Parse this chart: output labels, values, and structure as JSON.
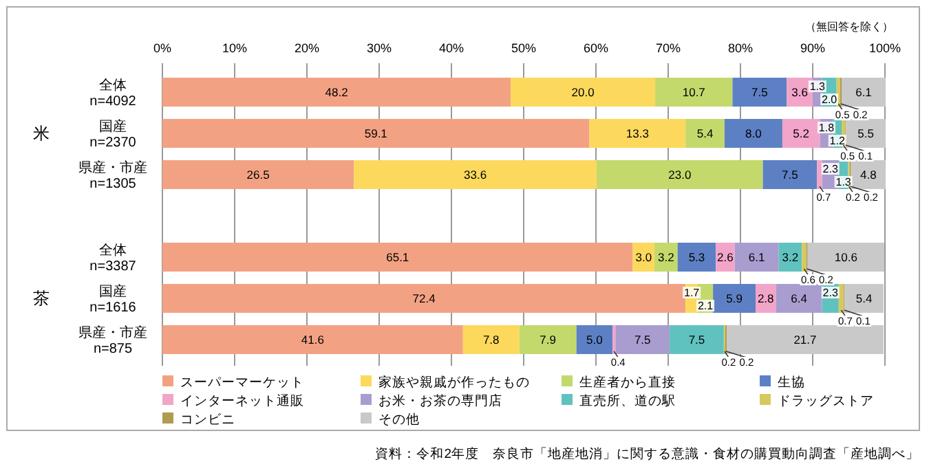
{
  "chart_data": {
    "type": "bar",
    "orientation": "horizontal",
    "stacked": true,
    "grid": "x",
    "legend": "bottom",
    "categories": [
      "全体\nn=4092",
      "国産\nn=2370",
      "県産・市産\nn=1305",
      null,
      "全体\nn=3387",
      "国産\nn=1616",
      "県産・市産\nn=875"
    ],
    "xlim": [
      0,
      100
    ],
    "xticks": [
      {
        "value": 0,
        "label": "0%"
      },
      {
        "value": 10,
        "label": "10%"
      },
      {
        "value": 20,
        "label": "20%"
      },
      {
        "value": 30,
        "label": "30%"
      },
      {
        "value": 40,
        "label": "40%"
      },
      {
        "value": 50,
        "label": "50%"
      },
      {
        "value": 60,
        "label": "60%"
      },
      {
        "value": 70,
        "label": "70%"
      },
      {
        "value": 80,
        "label": "80%"
      },
      {
        "value": 90,
        "label": "90%"
      },
      {
        "value": 100,
        "label": "100%"
      }
    ],
    "series": [
      {
        "name": "スーパーマーケット",
        "color": "#f2a283",
        "values": [
          48.2,
          59.1,
          26.5,
          null,
          65.1,
          72.4,
          41.6
        ],
        "value_labels": [
          "48.2",
          "59.1",
          "26.5",
          null,
          "65.1",
          "72.4",
          "41.6"
        ]
      },
      {
        "name": "家族や親戚が作ったもの",
        "color": "#fcd95c",
        "values": [
          20.0,
          13.3,
          33.6,
          null,
          3.0,
          1.7,
          7.8
        ],
        "value_labels": [
          "20.0",
          "13.3",
          "33.6",
          null,
          "3.0",
          "1.7",
          "7.8"
        ]
      },
      {
        "name": "生産者から直接",
        "color": "#c3d96c",
        "values": [
          10.7,
          5.4,
          23.0,
          null,
          3.2,
          2.1,
          7.9
        ],
        "value_labels": [
          "10.7",
          "5.4",
          "23.0",
          null,
          "3.2",
          "2.1",
          "7.9"
        ]
      },
      {
        "name": "生協",
        "color": "#5d80c4",
        "values": [
          7.5,
          8.0,
          7.5,
          null,
          5.3,
          5.9,
          5.0
        ],
        "value_labels": [
          "7.5",
          "8.0",
          "7.5",
          null,
          "5.3",
          "5.9",
          "5.0"
        ]
      },
      {
        "name": "インターネット通販",
        "color": "#f3a4c9",
        "values": [
          3.6,
          5.2,
          0.7,
          null,
          2.6,
          2.8,
          0.4
        ],
        "value_labels": [
          "3.6",
          "5.2",
          "0.7",
          null,
          "2.6",
          "2.8",
          "0.4"
        ]
      },
      {
        "name": "お米・お茶の専門店",
        "color": "#a99dcf",
        "values": [
          1.3,
          1.8,
          2.3,
          null,
          6.1,
          6.4,
          7.5
        ],
        "value_labels": [
          "1.3",
          "1.8",
          "2.3",
          null,
          "6.1",
          "6.4",
          "7.5"
        ]
      },
      {
        "name": "直売所、道の駅",
        "color": "#60c2bf",
        "values": [
          2.0,
          1.2,
          1.3,
          null,
          3.2,
          2.3,
          7.5
        ],
        "value_labels": [
          "2.0",
          "1.2",
          "1.3",
          null,
          "3.2",
          "2.3",
          "7.5"
        ]
      },
      {
        "name": "ドラッグストア",
        "color": "#d6c95f",
        "values": [
          0.5,
          0.5,
          0.2,
          null,
          0.6,
          0.7,
          0.2
        ],
        "value_labels": [
          "0.5",
          "0.5",
          "0.2",
          null,
          "0.6",
          "0.7",
          "0.2"
        ]
      },
      {
        "name": "コンビニ",
        "color": "#b09b53",
        "values": [
          0.2,
          0.1,
          0.2,
          null,
          0.2,
          0.1,
          0.2
        ],
        "value_labels": [
          "0.2",
          "0.1",
          "0.2",
          null,
          "0.2",
          "0.1",
          "0.2"
        ]
      },
      {
        "name": "その他",
        "color": "#c9c9c9",
        "values": [
          6.1,
          5.5,
          4.8,
          null,
          10.6,
          5.4,
          21.7
        ],
        "value_labels": [
          "6.1",
          "5.5",
          "4.8",
          null,
          "10.6",
          "5.4",
          "21.7"
        ]
      }
    ],
    "annotations": [
      "（無回答を除く）",
      "米",
      "茶",
      "資料：令和2年度　奈良市「地産地消」に関する意識・食材の購買動向調査「産地調べ」"
    ]
  }
}
